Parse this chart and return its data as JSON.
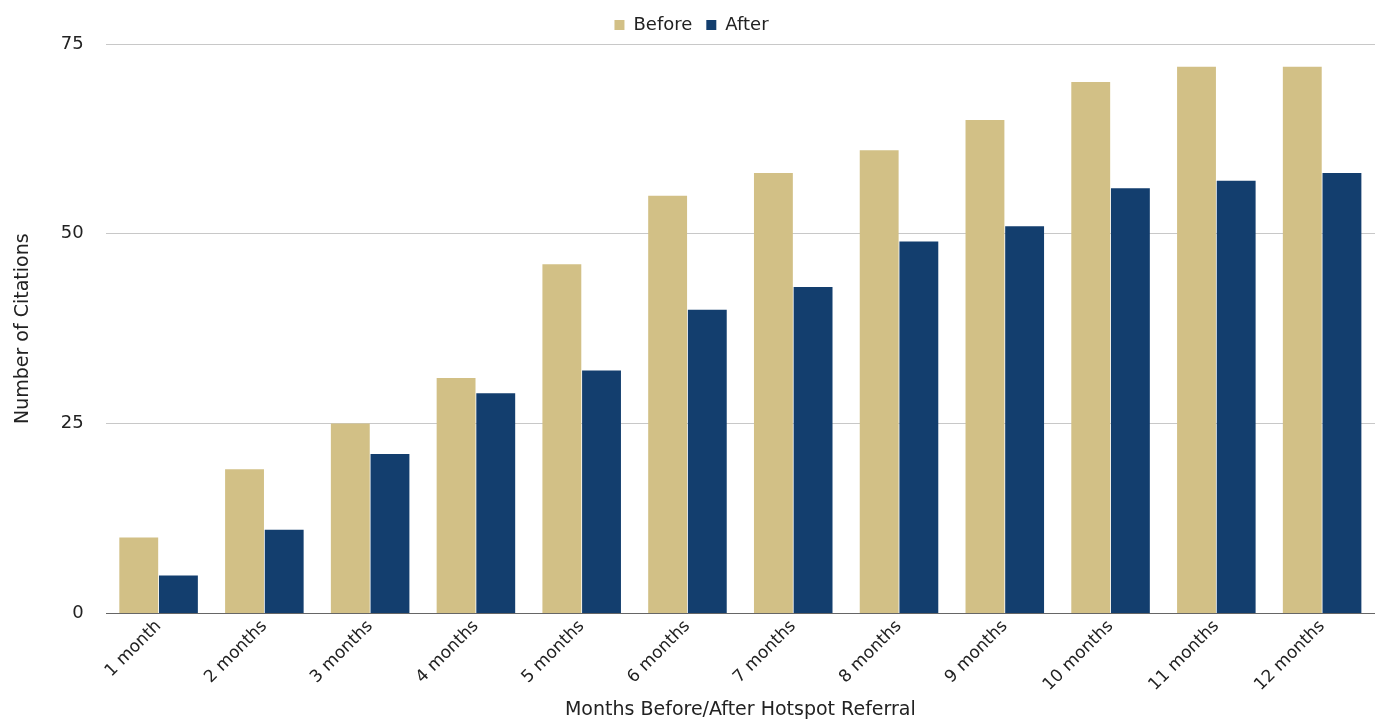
{
  "chart_data": {
    "type": "bar",
    "xlabel": "Months Before/After Hotspot Referral",
    "ylabel": "Number of Citations",
    "categories": [
      "1 month",
      "2 months",
      "3 months",
      "4 months",
      "5 months",
      "6 months",
      "7 months",
      "8 months",
      "9 months",
      "10 months",
      "11 months",
      "12 months"
    ],
    "series": [
      {
        "name": "Before",
        "color": "#d2c086",
        "values": [
          10,
          19,
          25,
          31,
          46,
          55,
          58,
          61,
          65,
          70,
          72,
          72
        ]
      },
      {
        "name": "After",
        "color": "#133e6e",
        "values": [
          5,
          11,
          21,
          29,
          32,
          40,
          43,
          49,
          51,
          56,
          57,
          58
        ]
      }
    ],
    "ylim": [
      0,
      75
    ],
    "yticks": [
      0,
      25,
      50,
      75
    ],
    "grid": "y",
    "legend": "top"
  }
}
